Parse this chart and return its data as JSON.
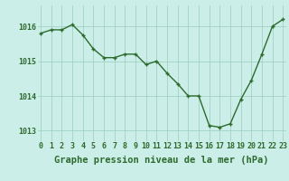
{
  "x": [
    0,
    1,
    2,
    3,
    4,
    5,
    6,
    7,
    8,
    9,
    10,
    11,
    12,
    13,
    14,
    15,
    16,
    17,
    18,
    19,
    20,
    21,
    22,
    23
  ],
  "y": [
    1015.8,
    1015.9,
    1015.9,
    1016.05,
    1015.75,
    1015.35,
    1015.1,
    1015.1,
    1015.2,
    1015.2,
    1014.9,
    1015.0,
    1014.65,
    1014.35,
    1014.0,
    1014.0,
    1013.15,
    1013.1,
    1013.2,
    1013.9,
    1014.45,
    1015.2,
    1016.0,
    1016.2
  ],
  "line_color": "#2d6a2d",
  "marker_color": "#2d6a2d",
  "bg_color": "#cceee8",
  "grid_color": "#99ccbb",
  "xlabel": "Graphe pression niveau de la mer (hPa)",
  "xlabel_color": "#2d6a2d",
  "tick_label_color": "#2d6a2d",
  "ylim": [
    1012.7,
    1016.6
  ],
  "yticks": [
    1013,
    1014,
    1015,
    1016
  ],
  "xticks": [
    0,
    1,
    2,
    3,
    4,
    5,
    6,
    7,
    8,
    9,
    10,
    11,
    12,
    13,
    14,
    15,
    16,
    17,
    18,
    19,
    20,
    21,
    22,
    23
  ],
  "xlim": [
    -0.3,
    23.3
  ],
  "font_size_xlabel": 7.5,
  "font_size_ticks": 6,
  "line_width": 1.0,
  "marker_size": 3.0
}
